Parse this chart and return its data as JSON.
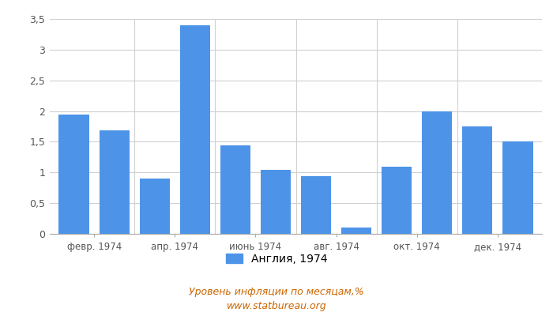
{
  "values": [
    1.94,
    1.69,
    0.9,
    3.4,
    1.44,
    1.04,
    0.94,
    0.1,
    1.1,
    1.99,
    1.75,
    1.5
  ],
  "x_labels": [
    "февр. 1974",
    "апр. 1974",
    "июнь 1974",
    "авг. 1974",
    "окт. 1974",
    "дек. 1974"
  ],
  "bar_color": "#4d94e8",
  "ylim": [
    0,
    3.5
  ],
  "yticks": [
    0,
    0.5,
    1.0,
    1.5,
    2.0,
    2.5,
    3.0,
    3.5
  ],
  "ytick_labels": [
    "0",
    "0,5",
    "1",
    "1,5",
    "2",
    "2,5",
    "3",
    "3,5"
  ],
  "legend_label": "Англия, 1974",
  "footer_line1": "Уровень инфляции по месяцам,%",
  "footer_line2": "www.statbureau.org",
  "background_color": "#ffffff",
  "grid_color": "#d0d0d0"
}
